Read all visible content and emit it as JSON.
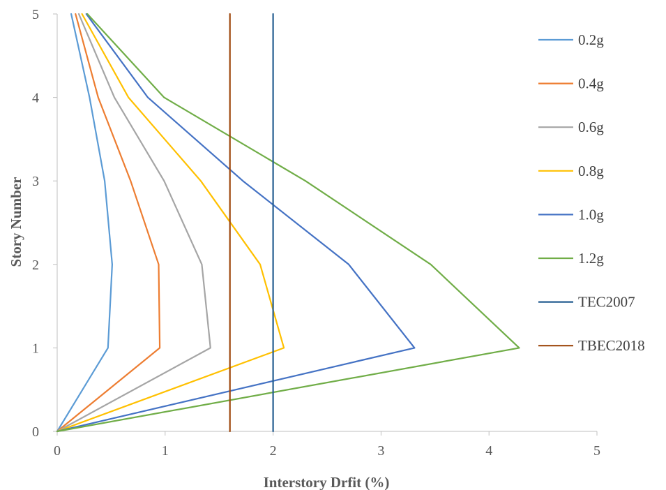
{
  "chart_data": {
    "type": "line",
    "title": "",
    "xlabel": "Interstory Drfit (%)",
    "ylabel": "Story Number",
    "xlim": [
      0,
      5
    ],
    "ylim": [
      0,
      5
    ],
    "x_ticks": [
      "0",
      "1",
      "2",
      "3",
      "4",
      "5"
    ],
    "y_ticks": [
      "0",
      "1",
      "2",
      "3",
      "4",
      "5"
    ],
    "grid": false,
    "legend_position": "right",
    "series": [
      {
        "name": "0.2g",
        "color": "#5B9BD5",
        "x": [
          0,
          0.47,
          0.51,
          0.44,
          0.3,
          0.13
        ],
        "y": [
          0,
          1,
          2,
          3,
          4,
          5
        ]
      },
      {
        "name": "0.4g",
        "color": "#ED7D31",
        "x": [
          0,
          0.95,
          0.94,
          0.68,
          0.38,
          0.17
        ],
        "y": [
          0,
          1,
          2,
          3,
          4,
          5
        ]
      },
      {
        "name": "0.6g",
        "color": "#A5A5A5",
        "x": [
          0,
          1.42,
          1.34,
          0.99,
          0.53,
          0.2
        ],
        "y": [
          0,
          1,
          2,
          3,
          4,
          5
        ]
      },
      {
        "name": "0.8g",
        "color": "#FFC000",
        "x": [
          0,
          2.1,
          1.88,
          1.33,
          0.66,
          0.23
        ],
        "y": [
          0,
          1,
          2,
          3,
          4,
          5
        ]
      },
      {
        "name": "1.0g",
        "color": "#4472C4",
        "x": [
          0,
          3.31,
          2.7,
          1.72,
          0.84,
          0.27
        ],
        "y": [
          0,
          1,
          2,
          3,
          4,
          5
        ]
      },
      {
        "name": "1.2g",
        "color": "#70AD47",
        "x": [
          0,
          4.28,
          3.46,
          2.3,
          0.99,
          0.28
        ],
        "y": [
          0,
          1,
          2,
          3,
          4,
          5
        ]
      },
      {
        "name": "TEC2007",
        "color": "#255E91",
        "x": [
          2.0,
          2.0
        ],
        "y": [
          0,
          5
        ]
      },
      {
        "name": "TBEC2018",
        "color": "#9E480E",
        "x": [
          1.6,
          1.6
        ],
        "y": [
          0,
          5
        ]
      }
    ]
  }
}
